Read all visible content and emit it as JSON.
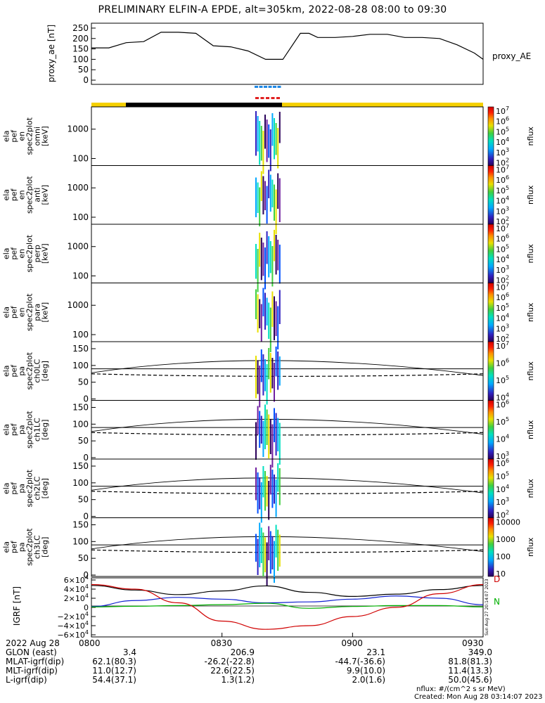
{
  "title": "PRELIMINARY ELFIN-A EPDE, alt=305km, 2022-08-28 08:00 to 09:30",
  "chart_data": [
    {
      "type": "line",
      "title": "",
      "ylabel": "proxy_ae [nT]",
      "legend": "proxy_AE",
      "ylim": [
        0,
        260
      ],
      "yticks": [
        "0",
        "50",
        "100",
        "150",
        "200",
        "250"
      ],
      "x_minutes": [
        0,
        4,
        8,
        12,
        16,
        20,
        24,
        28,
        32,
        36,
        40,
        44,
        48,
        50,
        52,
        56,
        60,
        64,
        68,
        72,
        76,
        80,
        84,
        88,
        90
      ],
      "values": [
        155,
        155,
        180,
        185,
        230,
        230,
        225,
        165,
        160,
        140,
        100,
        100,
        225,
        225,
        205,
        205,
        210,
        220,
        220,
        205,
        205,
        200,
        170,
        130,
        100
      ]
    },
    {
      "type": "heatmap",
      "panels": [
        {
          "ylabel": [
            "ela",
            "pef",
            "en",
            "spec2plot",
            "omni",
            "[keV]"
          ],
          "yticks": [
            "1000",
            "100"
          ],
          "colorbar_ticks": [
            "10^7",
            "10^6",
            "10^5",
            "10^4",
            "10^3",
            "10^2"
          ],
          "colorbar_label": "nflux"
        },
        {
          "ylabel": [
            "ela",
            "pef",
            "en",
            "spec2plot",
            "anti",
            "[keV]"
          ],
          "yticks": [
            "1000",
            "100"
          ],
          "colorbar_ticks": [
            "10^7",
            "10^6",
            "10^5",
            "10^4",
            "10^3",
            "10^2"
          ],
          "colorbar_label": "nflux"
        },
        {
          "ylabel": [
            "ela",
            "pef",
            "en",
            "spec2plot",
            "perp",
            "[keV]"
          ],
          "yticks": [
            "1000",
            "100"
          ],
          "colorbar_ticks": [
            "10^7",
            "10^6",
            "10^5",
            "10^4",
            "10^3",
            "10^2"
          ],
          "colorbar_label": "nflux"
        },
        {
          "ylabel": [
            "ela",
            "pef",
            "en",
            "spec2plot",
            "para",
            "[keV]"
          ],
          "yticks": [
            "1000",
            "100"
          ],
          "colorbar_ticks": [
            "10^7",
            "10^6",
            "10^5",
            "10^4",
            "10^3",
            "10^2"
          ],
          "colorbar_label": "nflux"
        },
        {
          "ylabel": [
            "ela",
            "pef",
            "pa",
            "spec2plot",
            "ch0LC",
            "[deg]"
          ],
          "yticks": [
            "150",
            "100",
            "50",
            "0"
          ],
          "colorbar_ticks": [
            "10^7",
            "10^6",
            "10^5",
            "10^4"
          ],
          "colorbar_label": "nflux"
        },
        {
          "ylabel": [
            "ela",
            "pef",
            "pa",
            "spec2plot",
            "ch1LC",
            "[deg]"
          ],
          "yticks": [
            "150",
            "100",
            "50",
            "0"
          ],
          "colorbar_ticks": [
            "10^6",
            "10^5",
            "10^4",
            "10^3"
          ],
          "colorbar_label": "nflux"
        },
        {
          "ylabel": [
            "ela",
            "pef",
            "pa",
            "spec2plot",
            "ch2LC",
            "[deg]"
          ],
          "yticks": [
            "150",
            "100",
            "50",
            "0"
          ],
          "colorbar_ticks": [
            "10^6",
            "10^5",
            "10^4",
            "10^3",
            "10^2"
          ],
          "colorbar_label": "nflux"
        },
        {
          "ylabel": [
            "ela",
            "pef",
            "pa",
            "spec2plot",
            "ch3LC",
            "[deg]"
          ],
          "yticks": [
            "150",
            "100",
            "50",
            "0"
          ],
          "colorbar_ticks": [
            "10000",
            "1000",
            "100",
            "10"
          ],
          "colorbar_label": "nflux"
        }
      ]
    },
    {
      "type": "line",
      "ylabel": "IGRF [nT]",
      "yticks": [
        "6×10^4",
        "4×10^4",
        "2×10^4",
        "0",
        "−2×10^4",
        "−4×10^4",
        "−6×10^4"
      ],
      "ylim": [
        -60000,
        60000
      ],
      "x_minutes": [
        0,
        10,
        20,
        30,
        40,
        50,
        60,
        70,
        80,
        90
      ],
      "series": [
        {
          "color": "#000000",
          "values": [
            48000,
            38000,
            28000,
            36000,
            47000,
            33000,
            24000,
            29000,
            39000,
            48000
          ]
        },
        {
          "color": "#1020d0",
          "values": [
            2000,
            15000,
            22000,
            18000,
            10000,
            12000,
            18000,
            25000,
            20000,
            6000
          ]
        },
        {
          "color": "#00b000",
          "values": [
            1000,
            2500,
            4000,
            6000,
            9000,
            -2000,
            2000,
            4000,
            4000,
            1000
          ]
        },
        {
          "color": "#d00000",
          "values": [
            50000,
            40000,
            10000,
            -30000,
            -48000,
            -40000,
            -20000,
            0,
            30000,
            50000
          ]
        }
      ],
      "side_labels": [
        "N",
        "D"
      ],
      "side_stamp": "Sun Aug 27 20:14:07 2023"
    }
  ],
  "x_axis": {
    "label": "2022 Aug 28",
    "ticks": [
      "0800",
      "0830",
      "0900",
      "0930"
    ]
  },
  "ephemeris": [
    {
      "label": "GLON (east)",
      "values": [
        "3.4",
        "206.9",
        "23.1",
        "349.0"
      ]
    },
    {
      "label": "MLAT-igrf(dip)",
      "values": [
        "62.1(80.3)",
        "-26.2(-22.8)",
        "-44.7(-36.6)",
        "81.8(81.3)"
      ]
    },
    {
      "label": "MLT-igrf(dip)",
      "values": [
        "11.0(12.7)",
        "22.6(22.5)",
        "9.9(10.0)",
        "11.4(13.3)"
      ]
    },
    {
      "label": "L-igrf(dip)",
      "values": [
        "54.4(37.1)",
        "1.3(1.2)",
        "2.0(1.6)",
        "50.0(45.6)"
      ]
    }
  ],
  "footer": {
    "units": "nflux: #/(cm^2 s sr MeV)",
    "created": "Created: Mon Aug 28 03:14:07 2023"
  },
  "colors": {
    "sunlit_bar": "#f5d000",
    "shadow_bar": "#000000",
    "blue_marks": "#1e88e5",
    "red_marks": "#e02020"
  }
}
